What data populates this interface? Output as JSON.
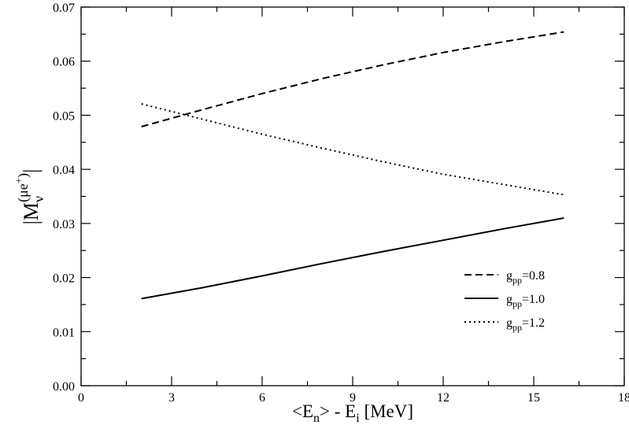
{
  "chart_data": {
    "type": "line",
    "title": "",
    "xlabel": {
      "lt": "<",
      "E": "E",
      "n": "n",
      "gt": ">",
      "minus": " - ",
      "E2": "E",
      "i": "i",
      "unit": " [MeV]"
    },
    "ylabel": {
      "bar_left": "|",
      "M": "M",
      "sub": "ν",
      "sup": "(μe",
      "sup_plus": "+",
      "sup_close": ")",
      "bar_right": "|"
    },
    "xlim": [
      0,
      18
    ],
    "ylim": [
      0,
      0.07
    ],
    "xticks": [
      "0",
      "3",
      "6",
      "9",
      "12",
      "15",
      "18"
    ],
    "yticks": [
      "0.00",
      "0.01",
      "0.02",
      "0.03",
      "0.04",
      "0.05",
      "0.06",
      "0.07"
    ],
    "grid": false,
    "legend_position": "lower-right",
    "series": [
      {
        "name_main": "g",
        "name_sub": "pp",
        "name_value": "=0.8",
        "style": "dashed",
        "color": "#000000",
        "x": [
          2,
          4,
          6,
          8,
          10,
          12,
          14,
          16
        ],
        "y": [
          0.0479,
          0.051,
          0.054,
          0.0568,
          0.0593,
          0.0616,
          0.0636,
          0.0654
        ]
      },
      {
        "name_main": "g",
        "name_sub": "pp",
        "name_value": "=1.0",
        "style": "solid",
        "color": "#000000",
        "x": [
          2,
          4,
          6,
          8,
          10,
          12,
          14,
          16
        ],
        "y": [
          0.0161,
          0.0181,
          0.0203,
          0.0226,
          0.0248,
          0.0269,
          0.029,
          0.031
        ]
      },
      {
        "name_main": "g",
        "name_sub": "pp",
        "name_value": "=1.2",
        "style": "dotted",
        "color": "#000000",
        "x": [
          2,
          4,
          6,
          8,
          10,
          12,
          14,
          16
        ],
        "y": [
          0.0521,
          0.0493,
          0.0465,
          0.0439,
          0.0414,
          0.0391,
          0.0372,
          0.0353
        ]
      }
    ]
  }
}
